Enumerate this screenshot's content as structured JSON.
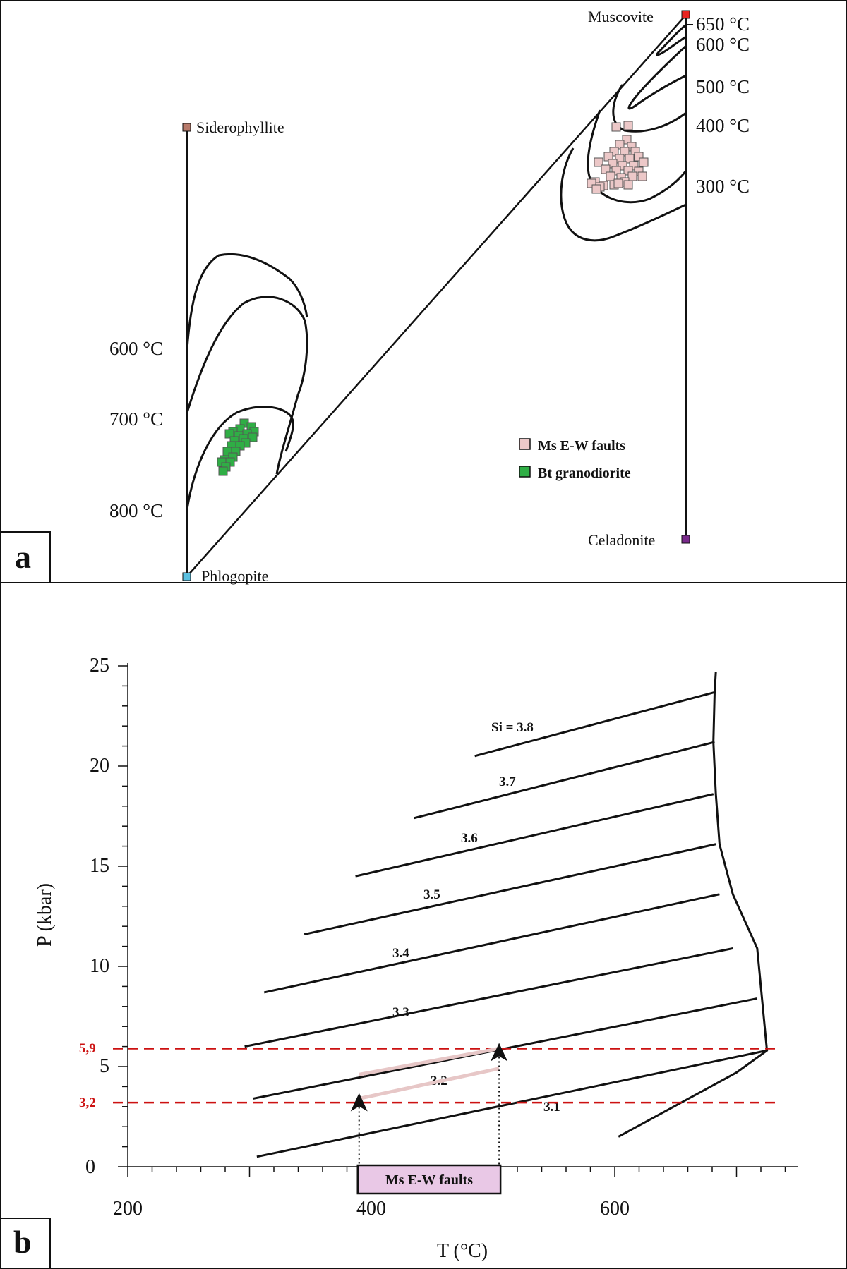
{
  "panel_a": {
    "letter": "a",
    "endmembers": {
      "muscovite": {
        "label": "Muscovite",
        "color": "#e8231f"
      },
      "siderophyllite": {
        "label": "Siderophyllite",
        "color": "#b87a6b"
      },
      "phlogopite": {
        "label": "Phlogopite",
        "color": "#5bc0e0"
      },
      "celadonite": {
        "label": "Celadonite",
        "color": "#7a2a8c"
      }
    },
    "right_isotherms": [
      "650 °C",
      "600 °C",
      "500 °C",
      "400 °C",
      "300 °C"
    ],
    "left_isotherms": [
      "600 °C",
      "700 °C",
      "800 °C"
    ],
    "legend": [
      {
        "label": "Ms E-W faults",
        "color": "#ecc8c8"
      },
      {
        "label": "Bt granodiorite",
        "color": "#2fae45"
      }
    ]
  },
  "panel_b": {
    "letter": "b",
    "xlabel": "T (°C)",
    "ylabel": "P (kbar)",
    "x_ticks": [
      "200",
      "400",
      "600"
    ],
    "y_ticks": [
      "0",
      "5",
      "10",
      "15",
      "20",
      "25"
    ],
    "red_lines": [
      {
        "label": "5,9",
        "value": 5.9,
        "color": "#cc1111"
      },
      {
        "label": "3,2",
        "value": 3.2,
        "color": "#cc1111"
      }
    ],
    "si_labels": [
      "Si = 3.8",
      "3.7",
      "3.6",
      "3.5",
      "3.4",
      "3.3",
      "3.2",
      "3.1"
    ],
    "range_box": {
      "label": "Ms E-W faults",
      "t_min": 390,
      "t_max": 505,
      "color": "#e9c8e6"
    }
  },
  "chart_data": [
    {
      "type": "scatter",
      "panel": "a",
      "title": "",
      "series": [
        {
          "name": "Ms E-W faults",
          "color": "#ecc8c8",
          "marker": "square",
          "temperature_range_c": [
            300,
            400
          ]
        },
        {
          "name": "Bt granodiorite",
          "color": "#2fae45",
          "marker": "square",
          "temperature_range_c": [
            700,
            750
          ]
        }
      ],
      "isotherms_right_c": [
        650,
        600,
        500,
        400,
        300
      ],
      "isotherms_left_c": [
        600,
        700,
        800
      ],
      "legend": "right-middle"
    },
    {
      "type": "line",
      "panel": "b",
      "xlabel": "T (°C)",
      "ylabel": "P (kbar)",
      "xlim": [
        200,
        750
      ],
      "ylim": [
        0,
        25
      ],
      "x_ticks": [
        200,
        400,
        600
      ],
      "y_ticks": [
        0,
        5,
        10,
        15,
        20,
        25
      ],
      "series": [
        {
          "name": "Si = 3.8",
          "x": [
            485,
            683
          ],
          "y": [
            20.5,
            23.7
          ]
        },
        {
          "name": "3.7",
          "x": [
            435,
            682
          ],
          "y": [
            17.4,
            21.2
          ]
        },
        {
          "name": "3.6",
          "x": [
            387,
            681
          ],
          "y": [
            14.5,
            18.6
          ]
        },
        {
          "name": "3.5",
          "x": [
            345,
            683
          ],
          "y": [
            11.6,
            16.1
          ]
        },
        {
          "name": "3.4",
          "x": [
            312,
            686
          ],
          "y": [
            8.7,
            13.6
          ]
        },
        {
          "name": "3.3",
          "x": [
            296,
            697
          ],
          "y": [
            6.0,
            10.9
          ]
        },
        {
          "name": "3.2",
          "x": [
            303,
            717
          ],
          "y": [
            3.4,
            8.4
          ]
        },
        {
          "name": "3.1",
          "x": [
            306,
            725
          ],
          "y": [
            0.5,
            5.8
          ]
        }
      ],
      "boundary": {
        "x": [
          683,
          682,
          681,
          683,
          686,
          697,
          717,
          725,
          700,
          603
        ],
        "y": [
          24.7,
          23.7,
          21.2,
          18.6,
          16.1,
          13.6,
          10.9,
          5.8,
          4.7,
          1.5
        ]
      },
      "ms_path": {
        "x": [
          390,
          505
        ],
        "y": [
          3.4,
          4.9
        ],
        "x2": [
          390,
          505
        ],
        "y2": [
          4.6,
          5.9
        ]
      },
      "reference_lines": [
        5.9,
        3.2
      ]
    }
  ]
}
